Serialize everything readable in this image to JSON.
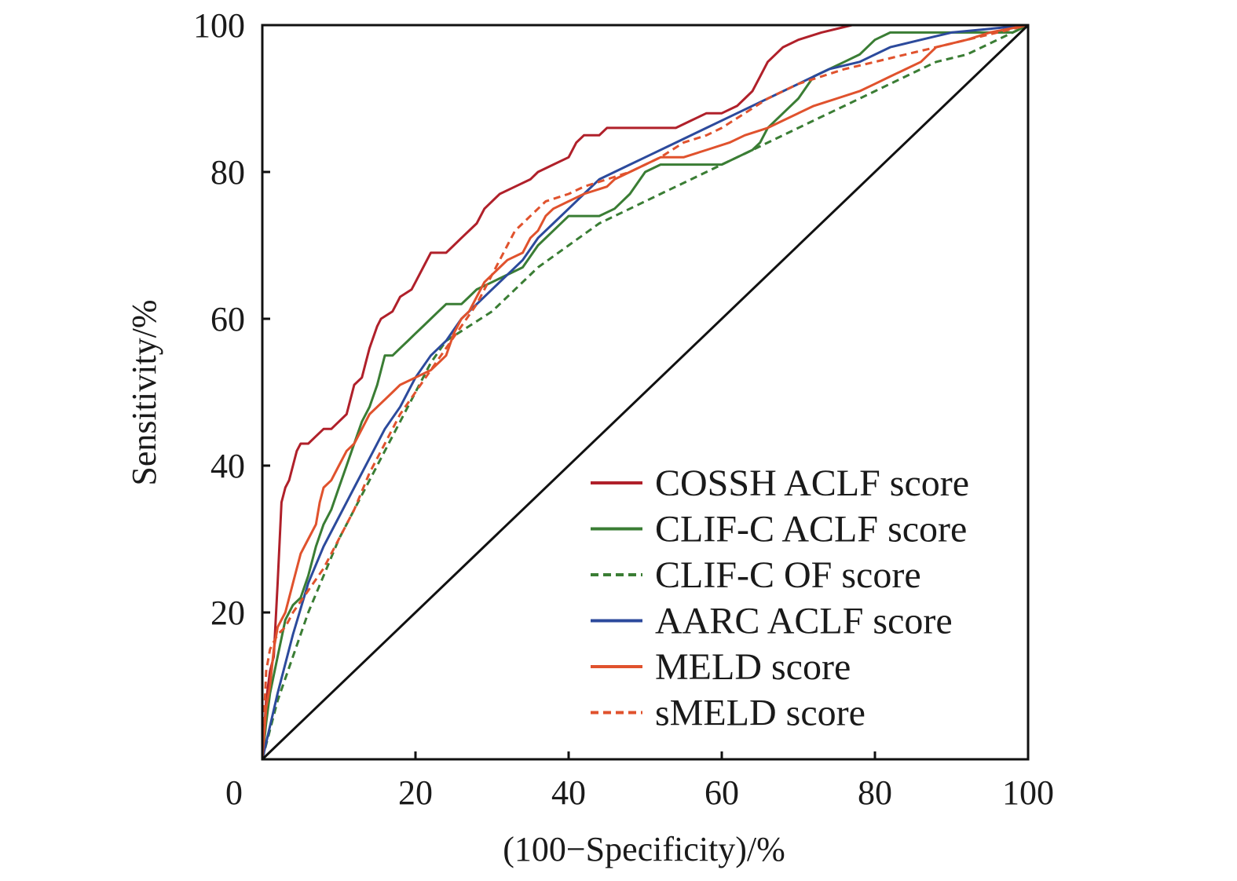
{
  "chart_data": {
    "type": "line",
    "title": "",
    "xlabel": "(100−Specificity)/%",
    "ylabel": "Sensitivity/%",
    "xlim": [
      0,
      100
    ],
    "ylim": [
      0,
      100
    ],
    "xticks": [
      "0",
      "20",
      "40",
      "60",
      "80",
      "100"
    ],
    "yticks": [
      "20",
      "40",
      "60",
      "80",
      "100"
    ],
    "grid": false,
    "legend_position": "bottom-right",
    "reference_line": {
      "x": [
        0,
        100
      ],
      "y": [
        0,
        100
      ],
      "color": "#111111"
    },
    "series": [
      {
        "name": "COSSH ACLF score",
        "color": "#b0202a",
        "dash": "solid",
        "points": [
          [
            0,
            0
          ],
          [
            0.5,
            8
          ],
          [
            1,
            12
          ],
          [
            1.5,
            14
          ],
          [
            2,
            24
          ],
          [
            2.5,
            35
          ],
          [
            3,
            37
          ],
          [
            3.5,
            38
          ],
          [
            4,
            40
          ],
          [
            4.5,
            42
          ],
          [
            5,
            43
          ],
          [
            6,
            43
          ],
          [
            7,
            44
          ],
          [
            8,
            45
          ],
          [
            9,
            45
          ],
          [
            10,
            46
          ],
          [
            11,
            47
          ],
          [
            12,
            51
          ],
          [
            13,
            52
          ],
          [
            13.5,
            54
          ],
          [
            14,
            56
          ],
          [
            15,
            59
          ],
          [
            15.5,
            60
          ],
          [
            17,
            61
          ],
          [
            18,
            63
          ],
          [
            19.5,
            64
          ],
          [
            20,
            65
          ],
          [
            21,
            67
          ],
          [
            22,
            69
          ],
          [
            24,
            69
          ],
          [
            25,
            70
          ],
          [
            26,
            71
          ],
          [
            28,
            73
          ],
          [
            29,
            75
          ],
          [
            30,
            76
          ],
          [
            31,
            77
          ],
          [
            33,
            78
          ],
          [
            35,
            79
          ],
          [
            36,
            80
          ],
          [
            38,
            81
          ],
          [
            40,
            82
          ],
          [
            41,
            84
          ],
          [
            42,
            85
          ],
          [
            44,
            85
          ],
          [
            45,
            86
          ],
          [
            50,
            86
          ],
          [
            54,
            86
          ],
          [
            56,
            87
          ],
          [
            58,
            88
          ],
          [
            60,
            88
          ],
          [
            62,
            89
          ],
          [
            63,
            90
          ],
          [
            64,
            91
          ],
          [
            65,
            93
          ],
          [
            66,
            95
          ],
          [
            68,
            97
          ],
          [
            70,
            98
          ],
          [
            73,
            99
          ],
          [
            77,
            100
          ],
          [
            100,
            100
          ]
        ]
      },
      {
        "name": "CLIF-C ACLF score",
        "color": "#3a7d34",
        "dash": "solid",
        "points": [
          [
            0,
            0
          ],
          [
            0.5,
            5
          ],
          [
            1,
            9
          ],
          [
            2,
            14
          ],
          [
            3,
            19
          ],
          [
            4,
            21
          ],
          [
            5,
            22
          ],
          [
            6,
            25
          ],
          [
            7,
            29
          ],
          [
            8,
            32
          ],
          [
            9,
            34
          ],
          [
            10,
            37
          ],
          [
            11,
            40
          ],
          [
            12,
            43
          ],
          [
            13,
            46
          ],
          [
            14,
            48
          ],
          [
            15,
            51
          ],
          [
            16,
            55
          ],
          [
            17,
            55
          ],
          [
            18,
            56
          ],
          [
            19,
            57
          ],
          [
            20,
            58
          ],
          [
            21,
            59
          ],
          [
            22,
            60
          ],
          [
            23,
            61
          ],
          [
            24,
            62
          ],
          [
            26,
            62
          ],
          [
            27,
            63
          ],
          [
            28,
            64
          ],
          [
            30,
            65
          ],
          [
            32,
            66
          ],
          [
            34,
            67
          ],
          [
            36,
            70
          ],
          [
            38,
            72
          ],
          [
            40,
            74
          ],
          [
            42,
            74
          ],
          [
            44,
            74
          ],
          [
            46,
            75
          ],
          [
            48,
            77
          ],
          [
            50,
            80
          ],
          [
            52,
            81
          ],
          [
            55,
            81
          ],
          [
            60,
            81
          ],
          [
            62,
            82
          ],
          [
            64,
            83
          ],
          [
            65,
            84
          ],
          [
            66,
            86
          ],
          [
            68,
            88
          ],
          [
            70,
            90
          ],
          [
            72,
            93
          ],
          [
            74,
            94
          ],
          [
            76,
            95
          ],
          [
            78,
            96
          ],
          [
            80,
            98
          ],
          [
            82,
            99
          ],
          [
            88,
            99
          ],
          [
            94,
            99
          ],
          [
            98,
            99
          ],
          [
            100,
            100
          ]
        ]
      },
      {
        "name": "CLIF-C OF score",
        "color": "#3a7d34",
        "dash": "dashed",
        "points": [
          [
            0,
            0
          ],
          [
            2,
            8
          ],
          [
            4,
            14
          ],
          [
            6,
            20
          ],
          [
            8,
            25
          ],
          [
            10,
            30
          ],
          [
            12,
            34
          ],
          [
            14,
            38
          ],
          [
            16,
            42
          ],
          [
            18,
            46
          ],
          [
            20,
            50
          ],
          [
            22,
            54
          ],
          [
            24,
            57
          ],
          [
            27,
            59
          ],
          [
            30,
            61
          ],
          [
            33,
            64
          ],
          [
            36,
            67
          ],
          [
            40,
            70
          ],
          [
            44,
            73
          ],
          [
            48,
            75
          ],
          [
            52,
            77
          ],
          [
            56,
            79
          ],
          [
            60,
            81
          ],
          [
            64,
            83
          ],
          [
            68,
            85
          ],
          [
            72,
            87
          ],
          [
            76,
            89
          ],
          [
            80,
            91
          ],
          [
            84,
            93
          ],
          [
            88,
            95
          ],
          [
            92,
            96
          ],
          [
            96,
            98
          ],
          [
            100,
            100
          ]
        ]
      },
      {
        "name": "AARC ACLF score",
        "color": "#2c4a9c",
        "dash": "solid",
        "points": [
          [
            0,
            0
          ],
          [
            2,
            9
          ],
          [
            4,
            17
          ],
          [
            6,
            24
          ],
          [
            8,
            29
          ],
          [
            10,
            33
          ],
          [
            12,
            37
          ],
          [
            14,
            41
          ],
          [
            16,
            45
          ],
          [
            18,
            48
          ],
          [
            20,
            52
          ],
          [
            22,
            55
          ],
          [
            24,
            57
          ],
          [
            26,
            60
          ],
          [
            28,
            62
          ],
          [
            30,
            64
          ],
          [
            32,
            66
          ],
          [
            34,
            68
          ],
          [
            36,
            71
          ],
          [
            38,
            73
          ],
          [
            40,
            75
          ],
          [
            42,
            77
          ],
          [
            44,
            79
          ],
          [
            46,
            80
          ],
          [
            48,
            81
          ],
          [
            50,
            82
          ],
          [
            54,
            84
          ],
          [
            58,
            86
          ],
          [
            62,
            88
          ],
          [
            66,
            90
          ],
          [
            70,
            92
          ],
          [
            74,
            94
          ],
          [
            78,
            95
          ],
          [
            82,
            97
          ],
          [
            86,
            98
          ],
          [
            90,
            99
          ],
          [
            95,
            99.5
          ],
          [
            100,
            100
          ]
        ]
      },
      {
        "name": "MELD score",
        "color": "#e0522d",
        "dash": "solid",
        "points": [
          [
            0,
            0
          ],
          [
            0.5,
            7
          ],
          [
            1,
            10
          ],
          [
            1.5,
            15
          ],
          [
            2,
            18
          ],
          [
            3,
            20
          ],
          [
            4,
            24
          ],
          [
            5,
            28
          ],
          [
            6,
            30
          ],
          [
            7,
            32
          ],
          [
            7.5,
            35
          ],
          [
            8,
            37
          ],
          [
            9,
            38
          ],
          [
            10,
            40
          ],
          [
            11,
            42
          ],
          [
            12,
            43
          ],
          [
            13,
            45
          ],
          [
            14,
            47
          ],
          [
            15,
            48
          ],
          [
            16,
            49
          ],
          [
            17,
            50
          ],
          [
            18,
            51
          ],
          [
            20,
            52
          ],
          [
            22,
            53
          ],
          [
            23,
            54
          ],
          [
            24,
            55
          ],
          [
            25,
            58
          ],
          [
            26,
            60
          ],
          [
            27,
            61
          ],
          [
            28,
            63
          ],
          [
            29,
            65
          ],
          [
            30,
            66
          ],
          [
            31,
            67
          ],
          [
            32,
            68
          ],
          [
            34,
            69
          ],
          [
            35,
            71
          ],
          [
            36,
            72
          ],
          [
            37,
            74
          ],
          [
            38,
            75
          ],
          [
            40,
            76
          ],
          [
            42,
            77
          ],
          [
            45,
            78
          ],
          [
            46,
            79
          ],
          [
            48,
            80
          ],
          [
            50,
            81
          ],
          [
            52,
            82
          ],
          [
            55,
            82
          ],
          [
            58,
            83
          ],
          [
            61,
            84
          ],
          [
            63,
            85
          ],
          [
            66,
            86
          ],
          [
            68,
            87
          ],
          [
            70,
            88
          ],
          [
            72,
            89
          ],
          [
            75,
            90
          ],
          [
            78,
            91
          ],
          [
            80,
            92
          ],
          [
            82,
            93
          ],
          [
            84,
            94
          ],
          [
            86,
            95
          ],
          [
            88,
            97
          ],
          [
            92,
            98
          ],
          [
            95,
            99
          ],
          [
            100,
            100
          ]
        ]
      },
      {
        "name": "sMELD score",
        "color": "#e0522d",
        "dash": "dashed",
        "points": [
          [
            0,
            0
          ],
          [
            0.5,
            12
          ],
          [
            1,
            15
          ],
          [
            2,
            17
          ],
          [
            3,
            18
          ],
          [
            4,
            20
          ],
          [
            6,
            23
          ],
          [
            8,
            26
          ],
          [
            10,
            30
          ],
          [
            12,
            34
          ],
          [
            14,
            39
          ],
          [
            16,
            43
          ],
          [
            18,
            47
          ],
          [
            20,
            50
          ],
          [
            22,
            53
          ],
          [
            24,
            56
          ],
          [
            26,
            59
          ],
          [
            28,
            62
          ],
          [
            30,
            66
          ],
          [
            32,
            70
          ],
          [
            33,
            72
          ],
          [
            35,
            74
          ],
          [
            37,
            76
          ],
          [
            40,
            77
          ],
          [
            42,
            78
          ],
          [
            45,
            79
          ],
          [
            48,
            80
          ],
          [
            50,
            81
          ],
          [
            52,
            82
          ],
          [
            55,
            84
          ],
          [
            58,
            85
          ],
          [
            60,
            86
          ],
          [
            63,
            88
          ],
          [
            66,
            90
          ],
          [
            70,
            92
          ],
          [
            73,
            93
          ],
          [
            76,
            94
          ],
          [
            80,
            95
          ],
          [
            84,
            96
          ],
          [
            88,
            97
          ],
          [
            92,
            98
          ],
          [
            96,
            99
          ],
          [
            100,
            100
          ]
        ]
      }
    ]
  }
}
